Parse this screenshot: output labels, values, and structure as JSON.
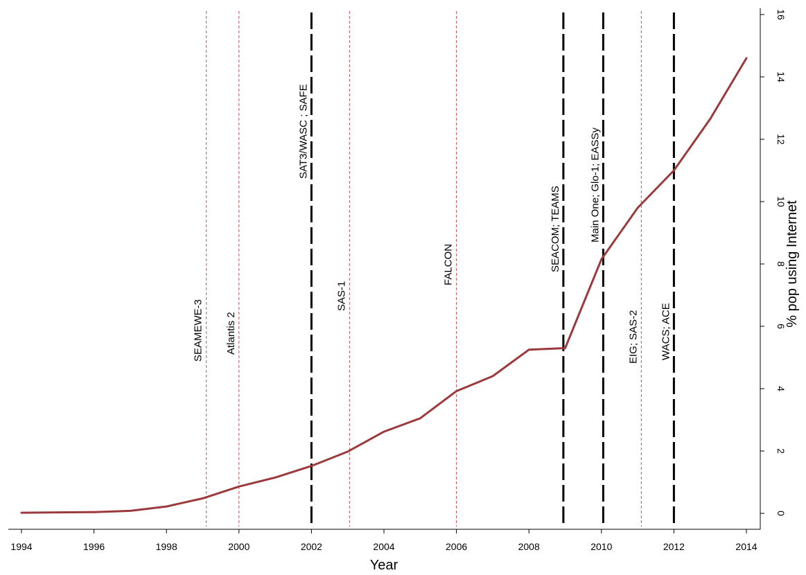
{
  "chart_data": {
    "type": "line",
    "xlabel": "Year",
    "ylabel": "% pop using Internet",
    "xlim": [
      1994,
      2014
    ],
    "ylim": [
      0,
      16
    ],
    "x_ticks": [
      1994,
      1996,
      1998,
      2000,
      2002,
      2004,
      2006,
      2008,
      2010,
      2012,
      2014
    ],
    "y_ticks": [
      0,
      2,
      4,
      6,
      8,
      10,
      12,
      14,
      16
    ],
    "y_axis_side": "right",
    "grid": false,
    "legend": "none",
    "series": [
      {
        "color": "#9b3a3d",
        "x": [
          1994,
          1995,
          1996,
          1997,
          1998,
          1999,
          2000,
          2001,
          2002,
          2003,
          2004,
          2005,
          2006,
          2007,
          2008,
          2009,
          2010,
          2011,
          2012,
          2013,
          2014
        ],
        "y": [
          0.02,
          0.03,
          0.04,
          0.08,
          0.22,
          0.48,
          0.86,
          1.15,
          1.52,
          1.98,
          2.62,
          3.05,
          3.92,
          4.4,
          5.25,
          5.3,
          8.15,
          9.8,
          11.0,
          12.65,
          14.6
        ]
      }
    ],
    "events": [
      {
        "x": 1999.1,
        "label": "SEAMEWE-3",
        "style": "thin",
        "color": "#c0504d"
      },
      {
        "x": 2000.0,
        "label": "Atlantis 2",
        "style": "thin",
        "color": "#c0504d"
      },
      {
        "x": 2002.0,
        "label": "SAT3/WASC ; SAFE",
        "style": "thick",
        "color": "#000000"
      },
      {
        "x": 2003.05,
        "label": "SAS-1",
        "style": "thin",
        "color": "#c0504d"
      },
      {
        "x": 2006.0,
        "label": "FALCON",
        "style": "thin",
        "color": "#c0504d"
      },
      {
        "x": 2008.95,
        "label": "SEACOM; TEAMS",
        "style": "thick",
        "color": "#000000"
      },
      {
        "x": 2010.05,
        "label": "Main One; Glo-1; EASSy",
        "style": "thick",
        "color": "#000000"
      },
      {
        "x": 2011.1,
        "label": "EIG; SAS-2",
        "style": "thin",
        "color": "#c0504d"
      },
      {
        "x": 2012.0,
        "label": "WACS; ACE",
        "style": "thick",
        "color": "#000000"
      }
    ]
  }
}
